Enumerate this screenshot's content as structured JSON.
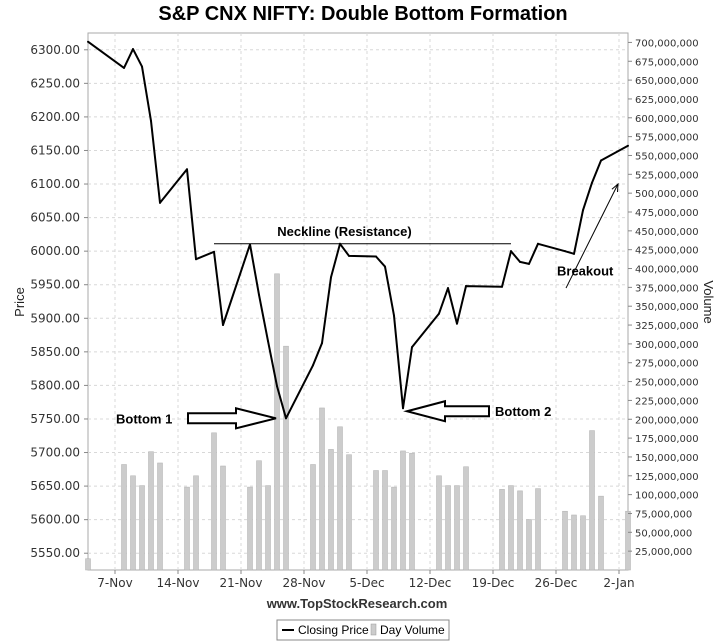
{
  "chart_data": {
    "type": "line",
    "title": "S&P CNX NIFTY: Double Bottom Formation",
    "ylabel": "Price",
    "y2label": "Volume",
    "ylim": [
      5525,
      6325
    ],
    "y2lim": [
      0,
      712500000
    ],
    "x_range": [
      "2010-11-04",
      "2011-01-03"
    ],
    "x_tick_labels": [
      "7-Nov",
      "14-Nov",
      "21-Nov",
      "28-Nov",
      "5-Dec",
      "12-Dec",
      "19-Dec",
      "26-Dec",
      "2-Jan"
    ],
    "y_tick_labels": [
      "5550.00",
      "5600.00",
      "5650.00",
      "5700.00",
      "5750.00",
      "5800.00",
      "5850.00",
      "5900.00",
      "5950.00",
      "6000.00",
      "6050.00",
      "6100.00",
      "6150.00",
      "6200.00",
      "6250.00",
      "6300.00"
    ],
    "y2_tick_labels": [
      "25,000,000",
      "50,000,000",
      "75,000,000",
      "100,000,000",
      "125,000,000",
      "150,000,000",
      "175,000,000",
      "200,000,000",
      "225,000,000",
      "250,000,000",
      "275,000,000",
      "300,000,000",
      "325,000,000",
      "350,000,000",
      "375,000,000",
      "400,000,000",
      "425,000,000",
      "450,000,000",
      "475,000,000",
      "500,000,000",
      "525,000,000",
      "550,000,000",
      "575,000,000",
      "600,000,000",
      "625,000,000",
      "650,000,000",
      "675,000,000",
      "700,000,000"
    ],
    "grid": true,
    "source": "www.TopStockResearch.com",
    "legend": {
      "position": "bottom",
      "items": [
        "Closing Price",
        "Day Volume"
      ]
    },
    "series": [
      {
        "name": "Closing Price",
        "color": "#000000",
        "points": [
          [
            "2010-11-04",
            6312
          ],
          [
            "2010-11-08",
            6273
          ],
          [
            "2010-11-09",
            6301
          ],
          [
            "2010-11-10",
            6275
          ],
          [
            "2010-11-11",
            6194
          ],
          [
            "2010-11-12",
            6072
          ],
          [
            "2010-11-15",
            6122
          ],
          [
            "2010-11-16",
            5988
          ],
          [
            "2010-11-18",
            5999
          ],
          [
            "2010-11-19",
            5890
          ],
          [
            "2010-11-22",
            6010
          ],
          [
            "2010-11-23",
            5935
          ],
          [
            "2010-11-24",
            5866
          ],
          [
            "2010-11-25",
            5799
          ],
          [
            "2010-11-26",
            5751
          ],
          [
            "2010-11-29",
            5830
          ],
          [
            "2010-11-30",
            5863
          ],
          [
            "2010-12-01",
            5961
          ],
          [
            "2010-12-02",
            6011
          ],
          [
            "2010-12-03",
            5993
          ],
          [
            "2010-12-06",
            5992
          ],
          [
            "2010-12-07",
            5977
          ],
          [
            "2010-12-08",
            5904
          ],
          [
            "2010-12-09",
            5766
          ],
          [
            "2010-12-10",
            5857
          ],
          [
            "2010-12-13",
            5907
          ],
          [
            "2010-12-14",
            5945
          ],
          [
            "2010-12-15",
            5892
          ],
          [
            "2010-12-16",
            5948
          ],
          [
            "2010-12-20",
            5947
          ],
          [
            "2010-12-21",
            6000
          ],
          [
            "2010-12-22",
            5984
          ],
          [
            "2010-12-23",
            5981
          ],
          [
            "2010-12-24",
            6011
          ],
          [
            "2010-12-27",
            6000
          ],
          [
            "2010-12-28",
            5996
          ],
          [
            "2010-12-29",
            6061
          ],
          [
            "2010-12-30",
            6102
          ],
          [
            "2010-12-31",
            6135
          ],
          [
            "2011-01-03",
            6157
          ]
        ]
      },
      {
        "name": "Day Volume",
        "color": "#cccccc",
        "points": [
          [
            "2010-11-04",
            15000000
          ],
          [
            "2010-11-08",
            140000000
          ],
          [
            "2010-11-09",
            125000000
          ],
          [
            "2010-11-10",
            112000000
          ],
          [
            "2010-11-11",
            157000000
          ],
          [
            "2010-11-12",
            142000000
          ],
          [
            "2010-11-15",
            110000000
          ],
          [
            "2010-11-16",
            125000000
          ],
          [
            "2010-11-18",
            182000000
          ],
          [
            "2010-11-19",
            138000000
          ],
          [
            "2010-11-22",
            110000000
          ],
          [
            "2010-11-23",
            145000000
          ],
          [
            "2010-11-24",
            112000000
          ],
          [
            "2010-11-25",
            393000000
          ],
          [
            "2010-11-26",
            297000000
          ],
          [
            "2010-11-29",
            140000000
          ],
          [
            "2010-11-30",
            215000000
          ],
          [
            "2010-12-01",
            160000000
          ],
          [
            "2010-12-02",
            190000000
          ],
          [
            "2010-12-03",
            153000000
          ],
          [
            "2010-12-06",
            132000000
          ],
          [
            "2010-12-07",
            132000000
          ],
          [
            "2010-12-08",
            110000000
          ],
          [
            "2010-12-09",
            158000000
          ],
          [
            "2010-12-10",
            155000000
          ],
          [
            "2010-12-13",
            125000000
          ],
          [
            "2010-12-14",
            112000000
          ],
          [
            "2010-12-15",
            112000000
          ],
          [
            "2010-12-16",
            137000000
          ],
          [
            "2010-12-20",
            107000000
          ],
          [
            "2010-12-21",
            112000000
          ],
          [
            "2010-12-22",
            105000000
          ],
          [
            "2010-12-23",
            67000000
          ],
          [
            "2010-12-24",
            108000000
          ],
          [
            "2010-12-27",
            78000000
          ],
          [
            "2010-12-28",
            73000000
          ],
          [
            "2010-12-29",
            72000000
          ],
          [
            "2010-12-30",
            185000000
          ],
          [
            "2010-12-31",
            98000000
          ],
          [
            "2011-01-03",
            78000000
          ]
        ]
      }
    ],
    "annotations": {
      "neckline_label": "Neckline (Resistance)",
      "neckline_value": 6011,
      "neckline_range": [
        "2010-11-18",
        "2010-12-21"
      ],
      "bottom1_label": "Bottom 1",
      "bottom2_label": "Bottom 2",
      "breakout_label": "Breakout"
    }
  }
}
